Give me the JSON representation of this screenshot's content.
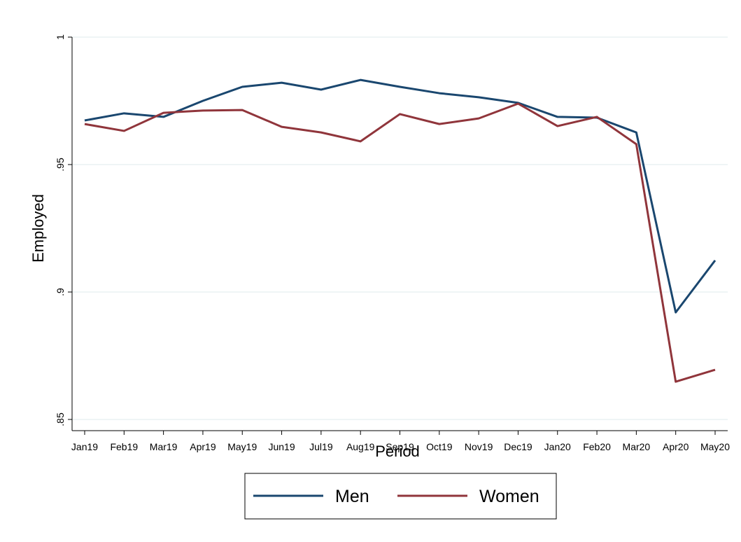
{
  "chart_data": {
    "type": "line",
    "x_label": "Period",
    "y_label": "Employed",
    "categories": [
      "Jan19",
      "Feb19",
      "Mar19",
      "Apr19",
      "May19",
      "Jun19",
      "Jul19",
      "Aug19",
      "Sep19",
      "Oct19",
      "Nov19",
      "Dec19",
      "Jan20",
      "Feb20",
      "Mar20",
      "Apr20",
      "May20"
    ],
    "series": [
      {
        "name": "Men",
        "color": "#1a476f",
        "values": [
          0.9673,
          0.9701,
          0.9687,
          0.975,
          0.9805,
          0.9821,
          0.9794,
          0.9832,
          0.9805,
          0.978,
          0.9764,
          0.9742,
          0.9687,
          0.9684,
          0.9626,
          0.892,
          0.9124
        ]
      },
      {
        "name": "Women",
        "color": "#90353b",
        "values": [
          0.9659,
          0.9632,
          0.9703,
          0.9712,
          0.9714,
          0.9648,
          0.9626,
          0.9591,
          0.9698,
          0.9659,
          0.9681,
          0.9739,
          0.9651,
          0.9687,
          0.958,
          0.8648,
          0.8695
        ]
      }
    ],
    "ylim": [
      0.8456,
      1.0
    ],
    "yticks": [
      {
        "value": 0.85,
        "label": ".85"
      },
      {
        "value": 0.9,
        "label": ".9"
      },
      {
        "value": 0.95,
        "label": ".95"
      },
      1
    ],
    "grid": true,
    "legend": "bottom"
  }
}
